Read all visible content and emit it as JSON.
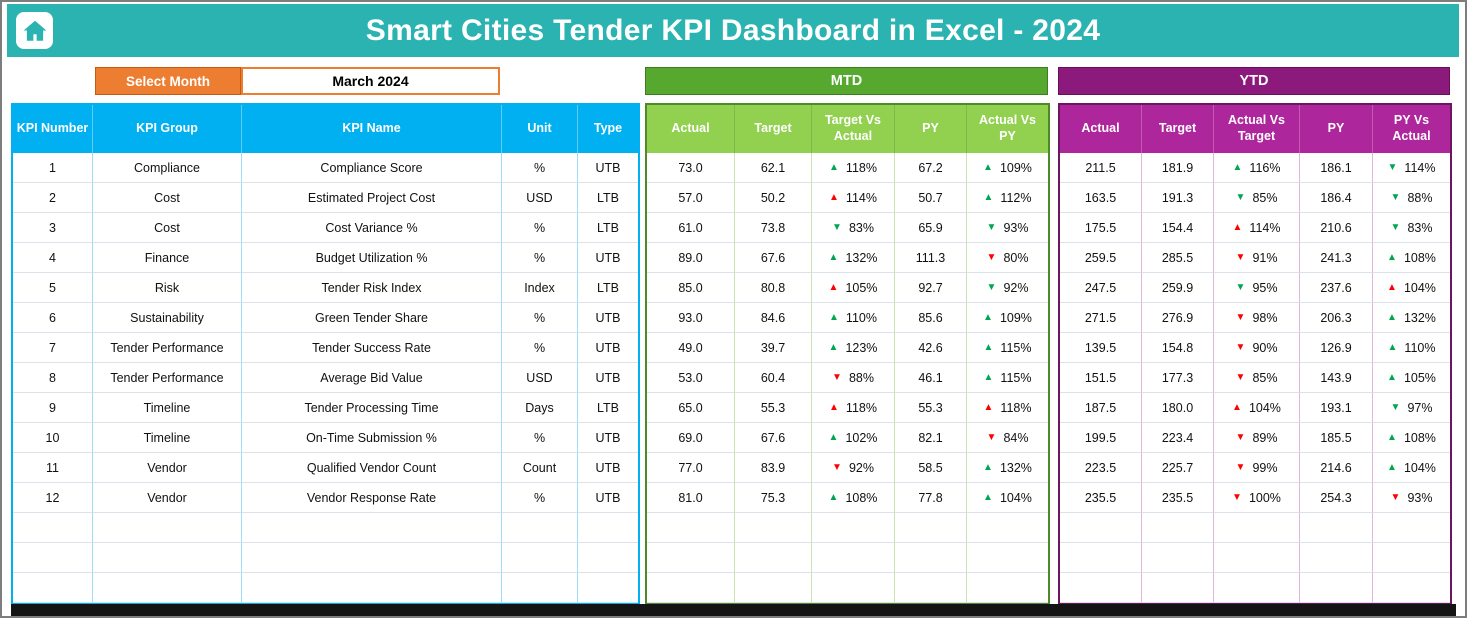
{
  "header": {
    "title": "Smart Cities Tender KPI Dashboard in Excel - 2024"
  },
  "controls": {
    "select_month_label": "Select Month",
    "selected_month": "March 2024"
  },
  "sections": {
    "mtd_label": "MTD",
    "ytd_label": "YTD"
  },
  "colors": {
    "header_teal": "#2BB3B1",
    "select_month_orange": "#ED7D31",
    "kpi_header_blue": "#00B0F0",
    "mtd_bar_green": "#56A82F",
    "mtd_header_green": "#92D050",
    "ytd_bar_purple": "#8C1A7C",
    "ytd_header_purple": "#AE269C",
    "trend_green": "#00A650",
    "trend_red": "#FF0000"
  },
  "kpi_table": {
    "headers": [
      "KPI Number",
      "KPI Group",
      "KPI Name",
      "Unit",
      "Type"
    ],
    "mtd_headers": [
      "Actual",
      "Target",
      "Target Vs Actual",
      "PY",
      "Actual Vs PY"
    ],
    "ytd_headers": [
      "Actual",
      "Target",
      "Actual Vs Target",
      "PY",
      "PY Vs Actual"
    ],
    "empty_rows": 3,
    "rows": [
      {
        "num": "1",
        "group": "Compliance",
        "name": "Compliance Score",
        "unit": "%",
        "type": "UTB",
        "mtd": {
          "actual": "73.0",
          "target": "62.1",
          "target_vs_actual": {
            "dir": "up",
            "color": "green",
            "pct": "118%"
          },
          "py": "67.2",
          "actual_vs_py": {
            "dir": "up",
            "color": "green",
            "pct": "109%"
          }
        },
        "ytd": {
          "actual": "211.5",
          "target": "181.9",
          "actual_vs_target": {
            "dir": "up",
            "color": "green",
            "pct": "116%"
          },
          "py": "186.1",
          "py_vs_actual": {
            "dir": "down",
            "color": "green",
            "pct": "114%"
          }
        }
      },
      {
        "num": "2",
        "group": "Cost",
        "name": "Estimated Project Cost",
        "unit": "USD",
        "type": "LTB",
        "mtd": {
          "actual": "57.0",
          "target": "50.2",
          "target_vs_actual": {
            "dir": "up",
            "color": "red",
            "pct": "114%"
          },
          "py": "50.7",
          "actual_vs_py": {
            "dir": "up",
            "color": "green",
            "pct": "112%"
          }
        },
        "ytd": {
          "actual": "163.5",
          "target": "191.3",
          "actual_vs_target": {
            "dir": "down",
            "color": "green",
            "pct": "85%"
          },
          "py": "186.4",
          "py_vs_actual": {
            "dir": "down",
            "color": "green",
            "pct": "88%"
          }
        }
      },
      {
        "num": "3",
        "group": "Cost",
        "name": "Cost Variance %",
        "unit": "%",
        "type": "LTB",
        "mtd": {
          "actual": "61.0",
          "target": "73.8",
          "target_vs_actual": {
            "dir": "down",
            "color": "green",
            "pct": "83%"
          },
          "py": "65.9",
          "actual_vs_py": {
            "dir": "down",
            "color": "green",
            "pct": "93%"
          }
        },
        "ytd": {
          "actual": "175.5",
          "target": "154.4",
          "actual_vs_target": {
            "dir": "up",
            "color": "red",
            "pct": "114%"
          },
          "py": "210.6",
          "py_vs_actual": {
            "dir": "down",
            "color": "green",
            "pct": "83%"
          }
        }
      },
      {
        "num": "4",
        "group": "Finance",
        "name": "Budget Utilization %",
        "unit": "%",
        "type": "UTB",
        "mtd": {
          "actual": "89.0",
          "target": "67.6",
          "target_vs_actual": {
            "dir": "up",
            "color": "green",
            "pct": "132%"
          },
          "py": "111.3",
          "actual_vs_py": {
            "dir": "down",
            "color": "red",
            "pct": "80%"
          }
        },
        "ytd": {
          "actual": "259.5",
          "target": "285.5",
          "actual_vs_target": {
            "dir": "down",
            "color": "red",
            "pct": "91%"
          },
          "py": "241.3",
          "py_vs_actual": {
            "dir": "up",
            "color": "green",
            "pct": "108%"
          }
        }
      },
      {
        "num": "5",
        "group": "Risk",
        "name": "Tender Risk Index",
        "unit": "Index",
        "type": "LTB",
        "mtd": {
          "actual": "85.0",
          "target": "80.8",
          "target_vs_actual": {
            "dir": "up",
            "color": "red",
            "pct": "105%"
          },
          "py": "92.7",
          "actual_vs_py": {
            "dir": "down",
            "color": "green",
            "pct": "92%"
          }
        },
        "ytd": {
          "actual": "247.5",
          "target": "259.9",
          "actual_vs_target": {
            "dir": "down",
            "color": "green",
            "pct": "95%"
          },
          "py": "237.6",
          "py_vs_actual": {
            "dir": "up",
            "color": "red",
            "pct": "104%"
          }
        }
      },
      {
        "num": "6",
        "group": "Sustainability",
        "name": "Green Tender Share",
        "unit": "%",
        "type": "UTB",
        "mtd": {
          "actual": "93.0",
          "target": "84.6",
          "target_vs_actual": {
            "dir": "up",
            "color": "green",
            "pct": "110%"
          },
          "py": "85.6",
          "actual_vs_py": {
            "dir": "up",
            "color": "green",
            "pct": "109%"
          }
        },
        "ytd": {
          "actual": "271.5",
          "target": "276.9",
          "actual_vs_target": {
            "dir": "down",
            "color": "red",
            "pct": "98%"
          },
          "py": "206.3",
          "py_vs_actual": {
            "dir": "up",
            "color": "green",
            "pct": "132%"
          }
        }
      },
      {
        "num": "7",
        "group": "Tender Performance",
        "name": "Tender Success Rate",
        "unit": "%",
        "type": "UTB",
        "mtd": {
          "actual": "49.0",
          "target": "39.7",
          "target_vs_actual": {
            "dir": "up",
            "color": "green",
            "pct": "123%"
          },
          "py": "42.6",
          "actual_vs_py": {
            "dir": "up",
            "color": "green",
            "pct": "115%"
          }
        },
        "ytd": {
          "actual": "139.5",
          "target": "154.8",
          "actual_vs_target": {
            "dir": "down",
            "color": "red",
            "pct": "90%"
          },
          "py": "126.9",
          "py_vs_actual": {
            "dir": "up",
            "color": "green",
            "pct": "110%"
          }
        }
      },
      {
        "num": "8",
        "group": "Tender Performance",
        "name": "Average Bid Value",
        "unit": "USD",
        "type": "UTB",
        "mtd": {
          "actual": "53.0",
          "target": "60.4",
          "target_vs_actual": {
            "dir": "down",
            "color": "red",
            "pct": "88%"
          },
          "py": "46.1",
          "actual_vs_py": {
            "dir": "up",
            "color": "green",
            "pct": "115%"
          }
        },
        "ytd": {
          "actual": "151.5",
          "target": "177.3",
          "actual_vs_target": {
            "dir": "down",
            "color": "red",
            "pct": "85%"
          },
          "py": "143.9",
          "py_vs_actual": {
            "dir": "up",
            "color": "green",
            "pct": "105%"
          }
        }
      },
      {
        "num": "9",
        "group": "Timeline",
        "name": "Tender Processing Time",
        "unit": "Days",
        "type": "LTB",
        "mtd": {
          "actual": "65.0",
          "target": "55.3",
          "target_vs_actual": {
            "dir": "up",
            "color": "red",
            "pct": "118%"
          },
          "py": "55.3",
          "actual_vs_py": {
            "dir": "up",
            "color": "red",
            "pct": "118%"
          }
        },
        "ytd": {
          "actual": "187.5",
          "target": "180.0",
          "actual_vs_target": {
            "dir": "up",
            "color": "red",
            "pct": "104%"
          },
          "py": "193.1",
          "py_vs_actual": {
            "dir": "down",
            "color": "green",
            "pct": "97%"
          }
        }
      },
      {
        "num": "10",
        "group": "Timeline",
        "name": "On-Time Submission %",
        "unit": "%",
        "type": "UTB",
        "mtd": {
          "actual": "69.0",
          "target": "67.6",
          "target_vs_actual": {
            "dir": "up",
            "color": "green",
            "pct": "102%"
          },
          "py": "82.1",
          "actual_vs_py": {
            "dir": "down",
            "color": "red",
            "pct": "84%"
          }
        },
        "ytd": {
          "actual": "199.5",
          "target": "223.4",
          "actual_vs_target": {
            "dir": "down",
            "color": "red",
            "pct": "89%"
          },
          "py": "185.5",
          "py_vs_actual": {
            "dir": "up",
            "color": "green",
            "pct": "108%"
          }
        }
      },
      {
        "num": "11",
        "group": "Vendor",
        "name": "Qualified Vendor Count",
        "unit": "Count",
        "type": "UTB",
        "mtd": {
          "actual": "77.0",
          "target": "83.9",
          "target_vs_actual": {
            "dir": "down",
            "color": "red",
            "pct": "92%"
          },
          "py": "58.5",
          "actual_vs_py": {
            "dir": "up",
            "color": "green",
            "pct": "132%"
          }
        },
        "ytd": {
          "actual": "223.5",
          "target": "225.7",
          "actual_vs_target": {
            "dir": "down",
            "color": "red",
            "pct": "99%"
          },
          "py": "214.6",
          "py_vs_actual": {
            "dir": "up",
            "color": "green",
            "pct": "104%"
          }
        }
      },
      {
        "num": "12",
        "group": "Vendor",
        "name": "Vendor Response Rate",
        "unit": "%",
        "type": "UTB",
        "mtd": {
          "actual": "81.0",
          "target": "75.3",
          "target_vs_actual": {
            "dir": "up",
            "color": "green",
            "pct": "108%"
          },
          "py": "77.8",
          "actual_vs_py": {
            "dir": "up",
            "color": "green",
            "pct": "104%"
          }
        },
        "ytd": {
          "actual": "235.5",
          "target": "235.5",
          "actual_vs_target": {
            "dir": "down",
            "color": "red",
            "pct": "100%"
          },
          "py": "254.3",
          "py_vs_actual": {
            "dir": "down",
            "color": "red",
            "pct": "93%"
          }
        }
      }
    ]
  }
}
